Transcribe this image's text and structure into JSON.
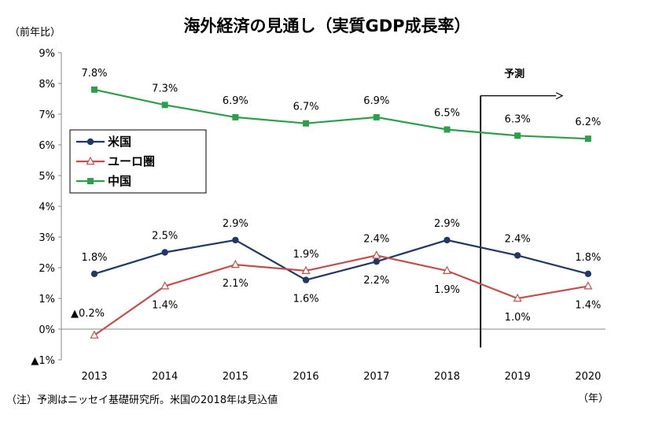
{
  "chart_data": {
    "type": "line",
    "title": "海外経済の見通し（実質GDP成長率）",
    "ylabel": "（前年比）",
    "xlabel": "（年）",
    "note": "（注）予測はニッセイ基礎研究所。米国の2018年は見込値",
    "forecast_label": "予測",
    "forecast_start": "2019",
    "categories": [
      "2013",
      "2014",
      "2015",
      "2016",
      "2017",
      "2018",
      "2019",
      "2020"
    ],
    "ylim": [
      -1,
      9
    ],
    "yticks": [
      -1,
      0,
      1,
      2,
      3,
      4,
      5,
      6,
      7,
      8,
      9
    ],
    "ytick_labels": [
      "▲1%",
      "0%",
      "1%",
      "2%",
      "3%",
      "4%",
      "5%",
      "6%",
      "7%",
      "8%",
      "9%"
    ],
    "grid": false,
    "legend_position": "left",
    "series": [
      {
        "name": "米国",
        "color": "#1f3864",
        "marker": "circle",
        "values": [
          1.8,
          2.5,
          2.9,
          1.6,
          2.2,
          2.9,
          2.4,
          1.8
        ],
        "labels": [
          "1.8%",
          "2.5%",
          "2.9%",
          "1.6%",
          "2.2%",
          "2.9%",
          "2.4%",
          "1.8%"
        ],
        "label_pos": [
          "above",
          "above",
          "above",
          "below",
          "below",
          "above",
          "above",
          "above"
        ]
      },
      {
        "name": "ユーロ圏",
        "color": "#c0504d",
        "marker": "triangle",
        "values": [
          -0.2,
          1.4,
          2.1,
          1.9,
          2.4,
          1.9,
          1.0,
          1.4
        ],
        "labels": [
          "▲0.2%",
          "1.4%",
          "2.1%",
          "1.9%",
          "2.4%",
          "1.9%",
          "1.0%",
          "1.4%"
        ],
        "label_pos": [
          "left",
          "below",
          "below",
          "above",
          "above",
          "below",
          "below",
          "below"
        ]
      },
      {
        "name": "中国",
        "color": "#2e9e4a",
        "marker": "square",
        "values": [
          7.8,
          7.3,
          6.9,
          6.7,
          6.9,
          6.5,
          6.3,
          6.2
        ],
        "labels": [
          "7.8%",
          "7.3%",
          "6.9%",
          "6.7%",
          "6.9%",
          "6.5%",
          "6.3%",
          "6.2%"
        ],
        "label_pos": [
          "above",
          "above",
          "above",
          "above",
          "above",
          "above",
          "above",
          "above"
        ]
      }
    ]
  }
}
